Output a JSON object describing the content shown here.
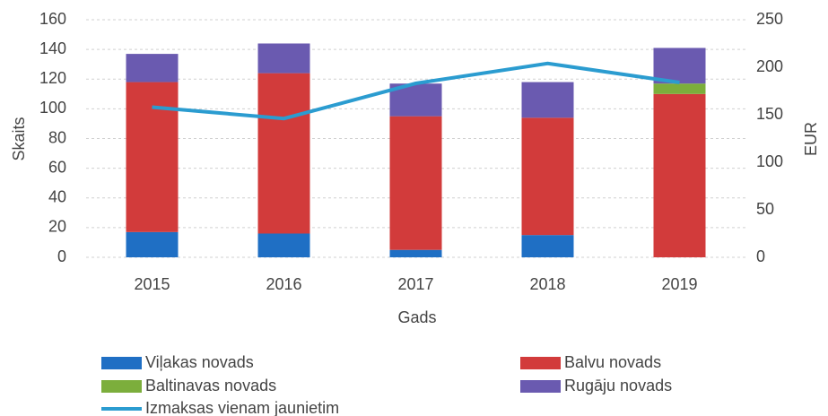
{
  "chart_data": {
    "type": "bar",
    "stacked": true,
    "categories": [
      "2015",
      "2016",
      "2017",
      "2018",
      "2019"
    ],
    "xlabel": "Gads",
    "ylabel": "Skaits",
    "y2label": "EUR",
    "ylim": [
      0,
      160
    ],
    "yticks": [
      0,
      20,
      40,
      60,
      80,
      100,
      120,
      140,
      160
    ],
    "y2lim": [
      0,
      250
    ],
    "y2ticks": [
      0,
      50,
      100,
      150,
      200,
      250
    ],
    "grid": true,
    "series": [
      {
        "name": "Viļakas novads",
        "color": "#1f6fc4",
        "values": [
          17,
          16,
          5,
          15,
          0
        ]
      },
      {
        "name": "Balvu novads",
        "color": "#d23b3b",
        "values": [
          101,
          108,
          90,
          79,
          110
        ]
      },
      {
        "name": "Baltinavas novads",
        "color": "#7cae3c",
        "values": [
          0,
          0,
          0,
          0,
          7
        ]
      },
      {
        "name": "Rugāju novads",
        "color": "#6a5ab0",
        "values": [
          19,
          20,
          22,
          24,
          24
        ]
      },
      {
        "name": "Izmaksas vienam jaunietim",
        "color": "#2b9cd0",
        "type": "line",
        "axis": "y2",
        "values": [
          158,
          146,
          183,
          204,
          184
        ]
      }
    ]
  }
}
